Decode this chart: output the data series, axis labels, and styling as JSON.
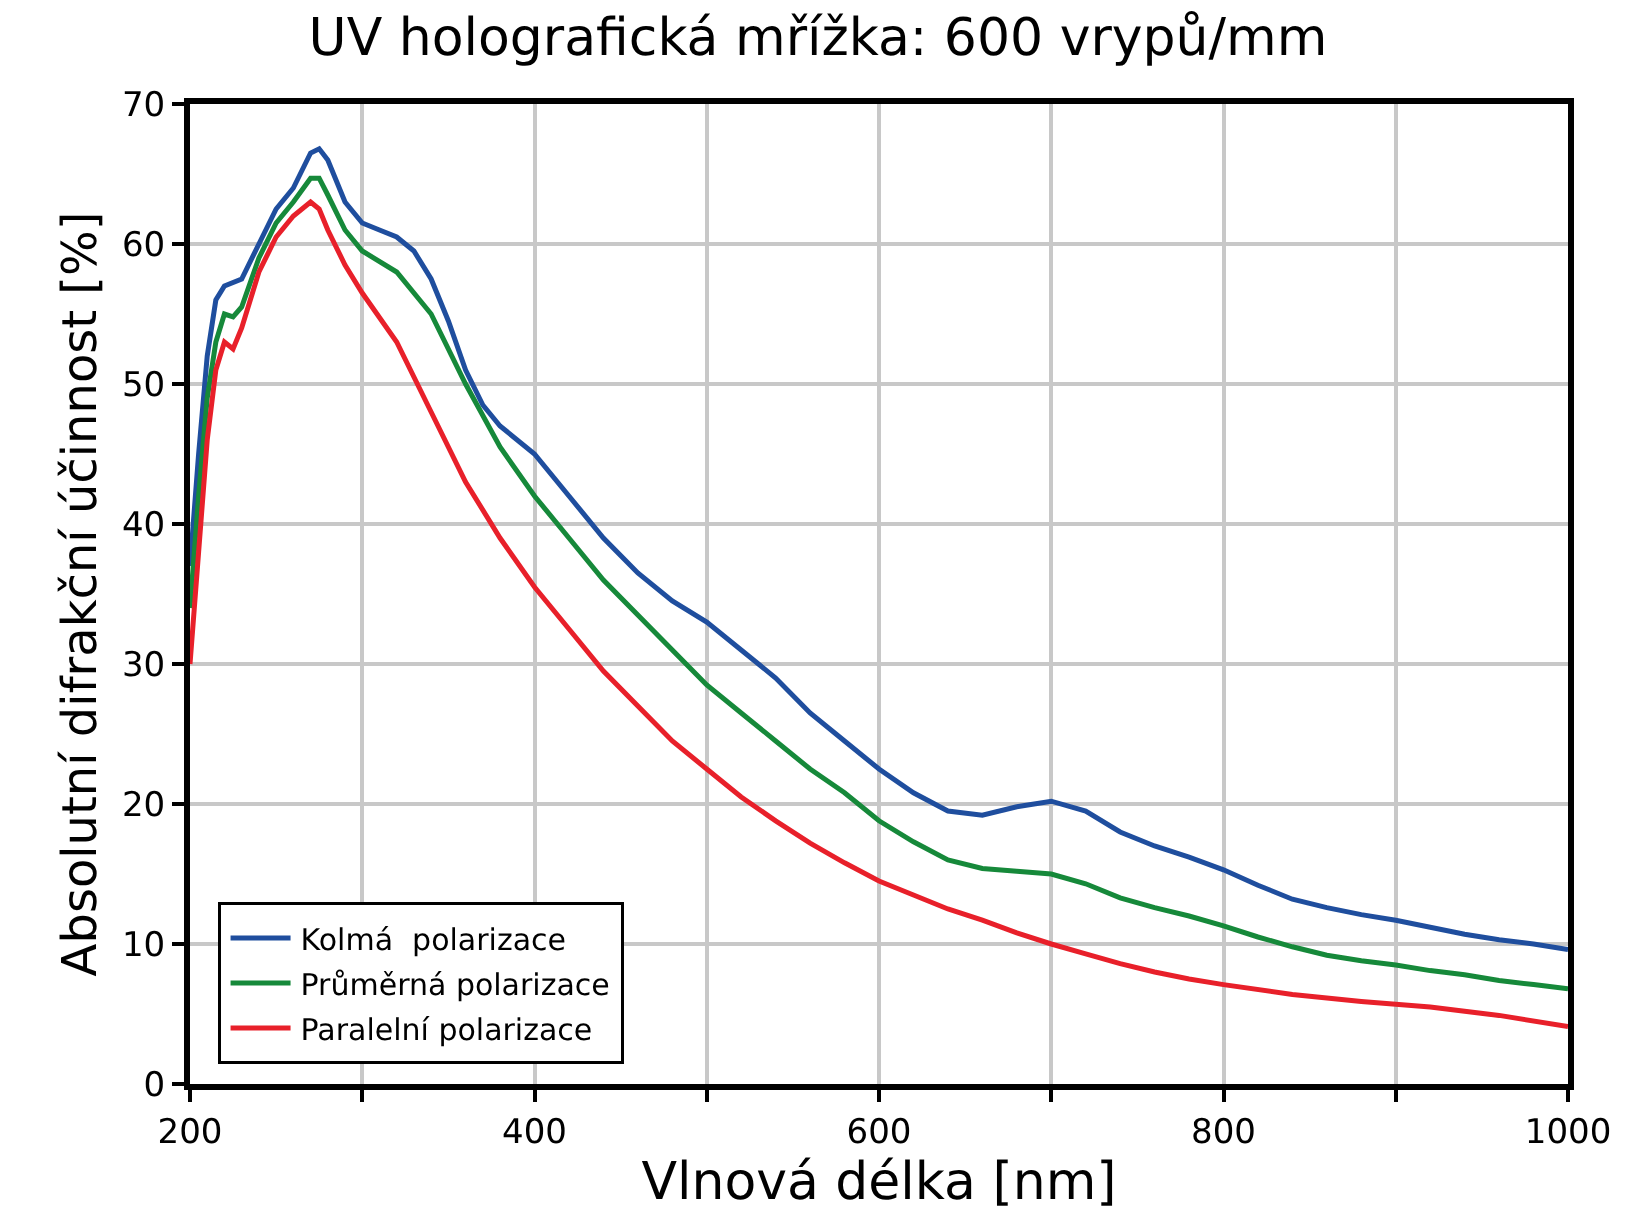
{
  "chart_data": {
    "type": "line",
    "title": "UV holografická mřížka: 600 vrypů/mm",
    "xlabel": "Vlnová délka [nm]",
    "ylabel": "Absolutní difrakční účinnost [%]",
    "xlim": [
      200,
      1000
    ],
    "xticks": [
      200,
      {
        "value": 300,
        "label": null
      },
      400,
      {
        "value": 500,
        "label": null
      },
      600,
      {
        "value": 700,
        "label": null
      },
      800,
      {
        "value": 900,
        "label": null
      },
      1000
    ],
    "ylim": [
      0,
      70
    ],
    "yticks": [
      0,
      10,
      20,
      30,
      40,
      50,
      60,
      70
    ],
    "grid": true,
    "legend": "bottom left",
    "marker": "none",
    "line_style": "solid",
    "series": [
      {
        "name": "Kolmá  polarizace",
        "color": "#1f4e9e",
        "x": [
          200,
          205,
          210,
          215,
          220,
          230,
          240,
          250,
          260,
          270,
          275,
          280,
          290,
          300,
          310,
          320,
          330,
          340,
          350,
          360,
          370,
          380,
          400,
          420,
          440,
          460,
          480,
          500,
          520,
          540,
          560,
          580,
          600,
          620,
          640,
          660,
          680,
          700,
          720,
          740,
          760,
          780,
          800,
          820,
          840,
          860,
          880,
          900,
          920,
          940,
          960,
          980,
          1000
        ],
        "values": [
          37,
          45,
          52,
          56,
          57,
          57.5,
          60,
          62.5,
          64,
          66.5,
          66.8,
          66,
          63,
          61.5,
          61,
          60.5,
          59.5,
          57.5,
          54.5,
          51,
          48.5,
          47,
          45,
          42,
          39,
          36.5,
          34.5,
          33,
          31,
          29,
          26.5,
          24.5,
          22.5,
          20.8,
          19.5,
          19.2,
          19.8,
          20.2,
          19.5,
          18,
          17,
          16.2,
          15.3,
          14.2,
          13.2,
          12.6,
          12.1,
          11.7,
          11.2,
          10.7,
          10.3,
          10,
          9.6
        ]
      },
      {
        "name": "Průměrná polarizace",
        "color": "#16893a",
        "x": [
          200,
          205,
          210,
          215,
          220,
          225,
          230,
          240,
          250,
          260,
          270,
          275,
          280,
          290,
          300,
          320,
          340,
          360,
          380,
          400,
          420,
          440,
          460,
          480,
          500,
          520,
          540,
          560,
          580,
          600,
          620,
          640,
          660,
          680,
          700,
          720,
          740,
          760,
          780,
          800,
          820,
          840,
          860,
          880,
          900,
          920,
          940,
          960,
          980,
          1000
        ],
        "values": [
          34,
          42,
          49,
          53,
          55,
          54.8,
          55.5,
          59,
          61.5,
          63,
          64.7,
          64.7,
          63.5,
          61,
          59.5,
          58,
          55,
          50,
          45.5,
          42,
          39,
          36,
          33.5,
          31,
          28.5,
          26.5,
          24.5,
          22.5,
          20.8,
          18.8,
          17.3,
          16,
          15.4,
          15.2,
          15,
          14.3,
          13.3,
          12.6,
          12,
          11.3,
          10.5,
          9.8,
          9.2,
          8.8,
          8.5,
          8.1,
          7.8,
          7.4,
          7.1,
          6.8
        ]
      },
      {
        "name": "Paralelní polarizace",
        "color": "#e8202a",
        "x": [
          200,
          205,
          210,
          215,
          220,
          225,
          230,
          240,
          250,
          260,
          270,
          275,
          280,
          290,
          300,
          320,
          340,
          360,
          380,
          400,
          420,
          440,
          460,
          480,
          500,
          520,
          540,
          560,
          580,
          600,
          620,
          640,
          660,
          680,
          700,
          720,
          740,
          760,
          780,
          800,
          840,
          880,
          920,
          960,
          1000
        ],
        "values": [
          30,
          38,
          46,
          51,
          53,
          52.5,
          54,
          58,
          60.5,
          62,
          63,
          62.5,
          61,
          58.5,
          56.5,
          53,
          48,
          43,
          39,
          35.5,
          32.5,
          29.5,
          27,
          24.5,
          22.5,
          20.5,
          18.8,
          17.2,
          15.8,
          14.5,
          13.5,
          12.5,
          11.7,
          10.8,
          10,
          9.3,
          8.6,
          8,
          7.5,
          7.1,
          6.4,
          5.9,
          5.5,
          4.9,
          4.1
        ]
      }
    ]
  }
}
